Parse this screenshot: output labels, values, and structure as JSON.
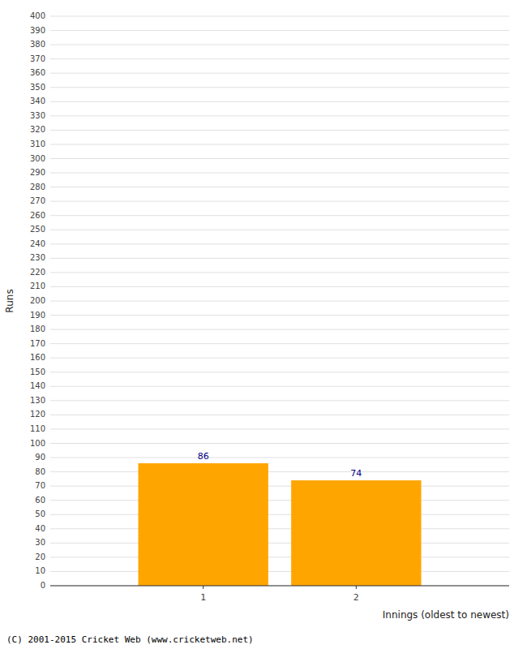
{
  "chart_data": {
    "type": "bar",
    "categories": [
      "1",
      "2"
    ],
    "values": [
      86,
      74
    ],
    "color": "#FFA500",
    "x_label": "Innings (oldest to newest)",
    "y_label": "Runs",
    "ylim": [
      0,
      400
    ],
    "yticks": [
      0,
      10,
      20,
      30,
      40,
      50,
      60,
      70,
      80,
      90,
      100,
      110,
      120,
      130,
      140,
      150,
      160,
      170,
      180,
      190,
      200,
      210,
      220,
      230,
      240,
      250,
      260,
      270,
      280,
      290,
      300,
      310,
      320,
      330,
      340,
      350,
      360,
      370,
      380,
      390,
      400
    ],
    "grid": true,
    "data_labels": true,
    "annotations": [
      "(C) 2001-2015 Cricket Web (www.cricketweb.net)"
    ]
  }
}
